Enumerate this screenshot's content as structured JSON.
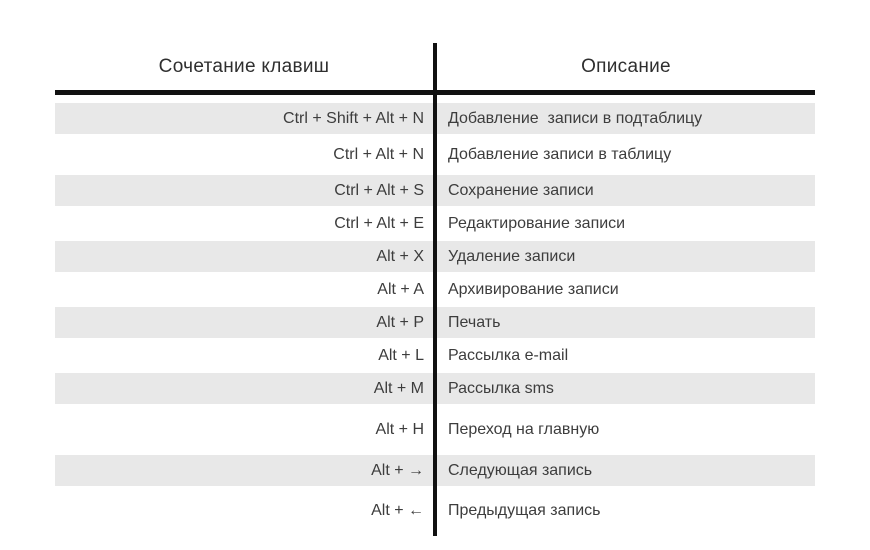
{
  "theme": {
    "bg": "#ffffff",
    "stripe": "#e8e8e8",
    "line": "#111111",
    "text": "#3d3d3d",
    "header-text": "#2f2f2f"
  },
  "table": {
    "headers": {
      "keys": "Сочетание клавиш",
      "description": "Описание"
    },
    "rows": [
      {
        "keys": "Ctrl + Shift + Alt + N",
        "desc": "Добавление  записи в подтаблицу"
      },
      {
        "keys": "Ctrl + Alt + N",
        "desc": "Добавление записи в таблицу"
      },
      {
        "keys": "Ctrl + Alt + S",
        "desc": "Сохранение записи"
      },
      {
        "keys": "Ctrl + Alt + E",
        "desc": "Редактирование записи"
      },
      {
        "keys": "Alt + X",
        "desc": "Удаление записи"
      },
      {
        "keys": "Alt + A",
        "desc": "Архивирование записи"
      },
      {
        "keys": "Alt + P",
        "desc": "Печать"
      },
      {
        "keys": "Alt + L",
        "desc": "Рассылка e-mail"
      },
      {
        "keys": "Alt + M",
        "desc": "Рассылка sms"
      },
      {
        "keys": "Alt + H",
        "desc": "Переход на главную"
      },
      {
        "keys": "Alt + →",
        "desc": "Следующая запись"
      },
      {
        "keys": "Alt + ←",
        "desc": "Предыдущая запись"
      }
    ]
  }
}
